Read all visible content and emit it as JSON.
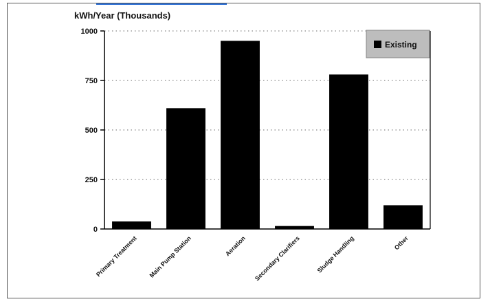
{
  "chart_data": {
    "type": "bar",
    "ylabel": "kWh/Year (Thousands)",
    "categories": [
      "Primary Treatment",
      "Main Pump Station",
      "Aeration",
      "Secondary Clarifiers",
      "Sludge Handling",
      "Other"
    ],
    "series": [
      {
        "name": "Existing",
        "values": [
          38,
          610,
          950,
          15,
          780,
          120
        ]
      }
    ],
    "ylim": [
      0,
      1000
    ],
    "yticks": [
      0,
      250,
      500,
      750,
      1000
    ],
    "grid": "horizontal dotted",
    "legend_position": "top-right",
    "colors": {
      "bar": "#000000",
      "grid": "#888888",
      "legend_bg": "#bdbdbd"
    }
  }
}
